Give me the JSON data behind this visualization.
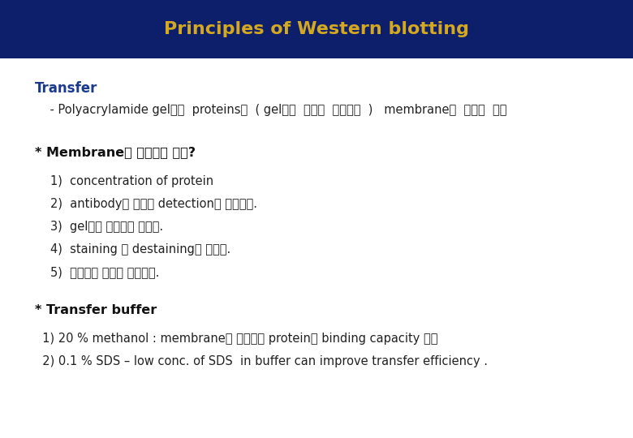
{
  "title": "Principles of Western blotting",
  "title_bg_color": "#0d1f6b",
  "title_text_color": "#d4a820",
  "title_fontsize": 16,
  "bg_color": "#ffffff",
  "section1_header": "Transfer",
  "section1_header_color": "#1a3a8c",
  "section1_header_fontsize": 12,
  "line1": "    - Polyacrylamide gel에서  proteins를  ( gel에서  분리된  양상대로  )   membrane에  옵기는  과정",
  "line1_fontsize": 10.5,
  "line1_color": "#222222",
  "section2_header": "* Membrane을 사용하는 이유?",
  "section2_header_color": "#111111",
  "section2_header_fontsize": 11.5,
  "items": [
    "1)  concentration of protein",
    "2)  antibody를 이용한 detection이 수월하다.",
    "3)  gel보다 다루기가 손쓰다.",
    "4)  staining 및 destaining이 빠르다.",
    "5)  장기간의 보관이 용이하다."
  ],
  "items_fontsize": 10.5,
  "items_color": "#222222",
  "section3_header": "* Transfer buffer",
  "section3_header_color": "#111111",
  "section3_header_fontsize": 11.5,
  "buffer_items": [
    "  1) 20 % methanol : membrane에 존재하는 protein의 binding capacity 증가",
    "  2) 0.1 % SDS – low conc. of SDS  in buffer can improve transfer efficiency ."
  ],
  "buffer_items_fontsize": 10.5,
  "buffer_items_color": "#222222",
  "fig_width": 7.8,
  "fig_height": 5.4,
  "dpi": 100
}
